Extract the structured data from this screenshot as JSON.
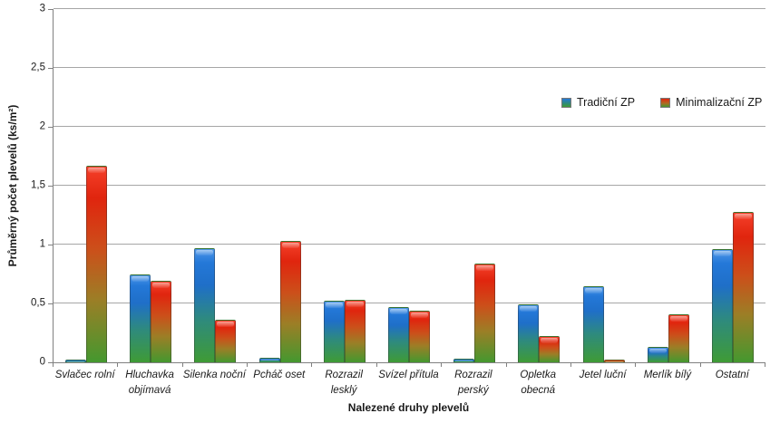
{
  "chart_data": {
    "type": "bar",
    "title": "",
    "xlabel": "Nalezené druhy plevelů",
    "ylabel": "Průměrný počet plevelů (ks/m²)",
    "categories": [
      "Svlačec rolní",
      "Hluchavka objímavá",
      "Silenka noční",
      "Pcháč oset",
      "Rozrazil lesklý",
      "Svízel přítula",
      "Rozrazil perský",
      "Opletka obecná",
      "Jetel luční",
      "Merlík bílý",
      "Ostatní"
    ],
    "categories_display": [
      "Svlačec rolní",
      "Hluchavka\nobjímavá",
      "Silenka noční",
      "Pcháč oset",
      "Rozrazil\nlesklý",
      "Svízel přítula",
      "Rozrazil\nperský",
      "Opletka\nobecná",
      "Jetel luční",
      "Merlík bílý",
      "Ostatní"
    ],
    "series": [
      {
        "name": "Tradiční ZP",
        "values": [
          0.02,
          0.75,
          0.97,
          0.04,
          0.52,
          0.47,
          0.03,
          0.49,
          0.65,
          0.13,
          0.96
        ],
        "color_top": "#2478d8",
        "color_bottom": "#3f9b35"
      },
      {
        "name": "Minimalizační ZP",
        "values": [
          1.67,
          0.69,
          0.36,
          1.03,
          0.53,
          0.44,
          0.84,
          0.22,
          0.02,
          0.41,
          1.28
        ],
        "color_top": "#e0250e",
        "color_bottom": "#44982f"
      }
    ],
    "ylim": [
      0,
      3
    ],
    "ytick_step": 0.5,
    "ytick_labels": [
      "0",
      "0,5",
      "1",
      "1,5",
      "2",
      "2,5",
      "3"
    ],
    "grid": true,
    "legend_position": "inside-top-right",
    "colors": {
      "axis": "#808080",
      "gridline": "#a6a6a6",
      "text": "#1a1a1a"
    }
  }
}
